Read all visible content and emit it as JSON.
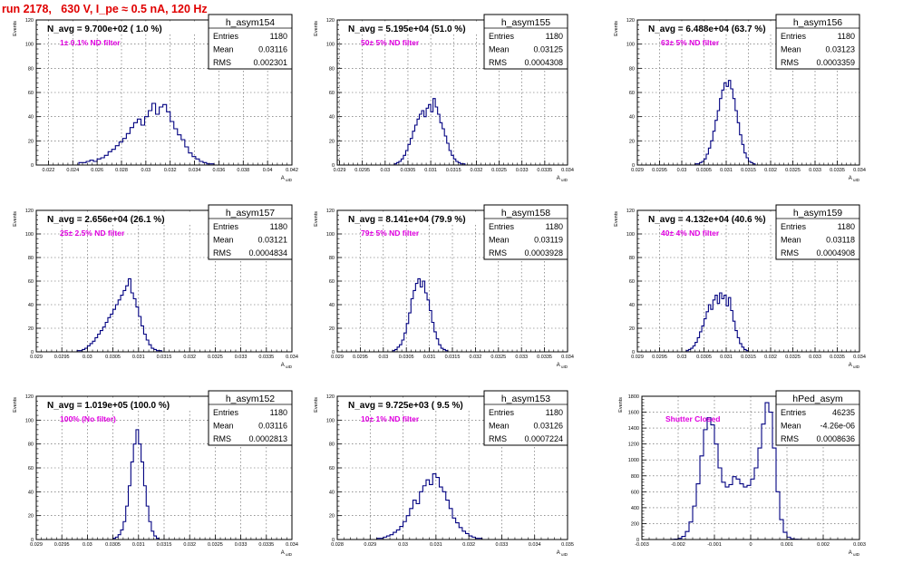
{
  "header": {
    "title": "run 2178,   630 V, I_pe ≈ 0.5 nA, 120 Hz"
  },
  "colors": {
    "title": "#e00000",
    "note": "#e000e0",
    "hist": "#000080",
    "grid": "#000000",
    "frame": "#000000"
  },
  "stats_labels": {
    "entries": "Entries",
    "mean": "Mean",
    "rms": "RMS"
  },
  "chart_data": [
    {
      "type": "bar",
      "name": "h_asym154",
      "label": "N_avg = 9.700e+02 ( 1.0 %)",
      "note": "1± 0.1% ND filter",
      "stats": {
        "entries": "1180",
        "mean": "0.03116",
        "rms": "0.002301"
      },
      "ylabel": "Events",
      "xlabel": "A_uID",
      "xlim": [
        0.021,
        0.042
      ],
      "ylim": [
        0,
        120
      ],
      "xticks": [
        0.022,
        0.024,
        0.026,
        0.028,
        0.03,
        0.032,
        0.034,
        0.036,
        0.038,
        0.04,
        0.042
      ],
      "xticklabels": [
        "0.022",
        "0.024",
        "0.026",
        "0.028",
        "0.03",
        "0.032",
        "0.034",
        "0.036",
        "0.038",
        "0.04",
        "0.042"
      ],
      "yticks": [
        0,
        20,
        40,
        60,
        80,
        100,
        120
      ],
      "yticklabels": [
        "0",
        "20",
        "40",
        "60",
        "80",
        "100",
        "120"
      ],
      "bins": {
        "start": 0.0245,
        "width": 0.0003,
        "values": [
          2,
          2,
          3,
          4,
          3,
          5,
          6,
          8,
          11,
          13,
          16,
          19,
          22,
          26,
          31,
          35,
          38,
          33,
          40,
          45,
          51,
          42,
          48,
          50,
          44,
          36,
          30,
          25,
          21,
          15,
          10,
          7,
          5,
          3,
          2,
          1,
          1
        ]
      }
    },
    {
      "type": "bar",
      "name": "h_asym155",
      "label": "N_avg = 5.195e+04 (51.0 %)",
      "note": "50± 5% ND filter",
      "stats": {
        "entries": "1180",
        "mean": "0.03125",
        "rms": "0.0004308"
      },
      "ylabel": "Events",
      "xlabel": "A_uID",
      "xlim": [
        0.02895,
        0.034
      ],
      "ylim": [
        0,
        120
      ],
      "xticks": [
        0.029,
        0.0295,
        0.03,
        0.0305,
        0.031,
        0.0315,
        0.032,
        0.0325,
        0.033,
        0.0335,
        0.034
      ],
      "xticklabels": [
        "0.029",
        "0.0295",
        "0.03",
        "0.0305",
        "0.031",
        "0.0315",
        "0.032",
        "0.0325",
        "0.033",
        "0.0335",
        "0.034"
      ],
      "yticks": [
        0,
        20,
        40,
        60,
        80,
        100,
        120
      ],
      "yticklabels": [
        "0",
        "20",
        "40",
        "60",
        "80",
        "100",
        "120"
      ],
      "bins": {
        "start": 0.0302,
        "width": 5e-05,
        "values": [
          1,
          2,
          3,
          5,
          8,
          12,
          17,
          22,
          28,
          33,
          38,
          42,
          45,
          40,
          47,
          50,
          44,
          55,
          48,
          42,
          35,
          30,
          24,
          18,
          12,
          8,
          5,
          3,
          2,
          1,
          1
        ]
      }
    },
    {
      "type": "bar",
      "name": "h_asym156",
      "label": "N_avg = 6.488e+04 (63.7 %)",
      "note": "63± 5% ND filter",
      "stats": {
        "entries": "1180",
        "mean": "0.03123",
        "rms": "0.0003359"
      },
      "ylabel": "Events",
      "xlabel": "A_uID",
      "xlim": [
        0.029,
        0.034
      ],
      "ylim": [
        0,
        120
      ],
      "xticks": [
        0.029,
        0.0295,
        0.03,
        0.0305,
        0.031,
        0.0315,
        0.032,
        0.0325,
        0.033,
        0.0335,
        0.034
      ],
      "xticklabels": [
        "0.029",
        "0.0295",
        "0.03",
        "0.0305",
        "0.031",
        "0.0315",
        "0.032",
        "0.0325",
        "0.033",
        "0.0335",
        "0.034"
      ],
      "yticks": [
        0,
        20,
        40,
        60,
        80,
        100,
        120
      ],
      "yticklabels": [
        "0",
        "20",
        "40",
        "60",
        "80",
        "100",
        "120"
      ],
      "bins": {
        "start": 0.0303,
        "width": 5e-05,
        "values": [
          1,
          1,
          2,
          3,
          5,
          9,
          14,
          20,
          28,
          37,
          45,
          55,
          62,
          68,
          65,
          70,
          63,
          55,
          45,
          35,
          25,
          17,
          10,
          6,
          3,
          2,
          1
        ]
      }
    },
    {
      "type": "bar",
      "name": "h_asym157",
      "label": "N_avg = 2.656e+04 (26.1 %)",
      "note": "25± 2.5% ND filter",
      "stats": {
        "entries": "1180",
        "mean": "0.03121",
        "rms": "0.0004834"
      },
      "ylabel": "Events",
      "xlabel": "A_uID",
      "xlim": [
        0.029,
        0.034
      ],
      "ylim": [
        0,
        120
      ],
      "xticks": [
        0.029,
        0.0295,
        0.03,
        0.0305,
        0.031,
        0.0315,
        0.032,
        0.0325,
        0.033,
        0.0335,
        0.034
      ],
      "xticklabels": [
        "0.029",
        "0.0295",
        "0.03",
        "0.0305",
        "0.031",
        "0.0315",
        "0.032",
        "0.0325",
        "0.033",
        "0.0335",
        "0.034"
      ],
      "yticks": [
        0,
        20,
        40,
        60,
        80,
        100,
        120
      ],
      "yticklabels": [
        "0",
        "20",
        "40",
        "60",
        "80",
        "100",
        "120"
      ],
      "bins": {
        "start": 0.0298,
        "width": 5e-05,
        "values": [
          1,
          1,
          2,
          3,
          5,
          7,
          9,
          12,
          15,
          18,
          21,
          25,
          29,
          32,
          36,
          40,
          44,
          48,
          52,
          56,
          62,
          50,
          45,
          38,
          30,
          22,
          15,
          10,
          6,
          3,
          2,
          1,
          1
        ]
      }
    },
    {
      "type": "bar",
      "name": "h_asym158",
      "label": "N_avg = 8.141e+04 (79.9 %)",
      "note": "79± 5% ND filter",
      "stats": {
        "entries": "1180",
        "mean": "0.03119",
        "rms": "0.0003928"
      },
      "ylabel": "Events",
      "xlabel": "A_uID",
      "xlim": [
        0.029,
        0.034
      ],
      "ylim": [
        0,
        120
      ],
      "xticks": [
        0.029,
        0.0295,
        0.03,
        0.0305,
        0.031,
        0.0315,
        0.032,
        0.0325,
        0.033,
        0.0335,
        0.034
      ],
      "xticklabels": [
        "0.029",
        "0.0295",
        "0.03",
        "0.0305",
        "0.031",
        "0.0315",
        "0.032",
        "0.0325",
        "0.033",
        "0.0335",
        "0.034"
      ],
      "yticks": [
        0,
        20,
        40,
        60,
        80,
        100,
        120
      ],
      "yticklabels": [
        "0",
        "20",
        "40",
        "60",
        "80",
        "100",
        "120"
      ],
      "bins": {
        "start": 0.0302,
        "width": 5e-05,
        "values": [
          1,
          2,
          4,
          6,
          10,
          16,
          24,
          33,
          45,
          52,
          58,
          62,
          55,
          60,
          50,
          44,
          35,
          25,
          17,
          11,
          6,
          3,
          2,
          1
        ]
      }
    },
    {
      "type": "bar",
      "name": "h_asym159",
      "label": "N_avg = 4.132e+04 (40.6 %)",
      "note": "40± 4% ND filter",
      "stats": {
        "entries": "1180",
        "mean": "0.03118",
        "rms": "0.0004908"
      },
      "ylabel": "Events",
      "xlabel": "A_uID",
      "xlim": [
        0.029,
        0.034
      ],
      "ylim": [
        0,
        120
      ],
      "xticks": [
        0.029,
        0.0295,
        0.03,
        0.0305,
        0.031,
        0.0315,
        0.032,
        0.0325,
        0.033,
        0.0335,
        0.034
      ],
      "xticklabels": [
        "0.029",
        "0.0295",
        "0.03",
        "0.0305",
        "0.031",
        "0.0315",
        "0.032",
        "0.0325",
        "0.033",
        "0.0335",
        "0.034"
      ],
      "yticks": [
        0,
        20,
        40,
        60,
        80,
        100,
        120
      ],
      "yticklabels": [
        "0",
        "20",
        "40",
        "60",
        "80",
        "100",
        "120"
      ],
      "bins": {
        "start": 0.0301,
        "width": 5e-05,
        "values": [
          1,
          2,
          3,
          5,
          8,
          12,
          17,
          22,
          28,
          34,
          40,
          36,
          44,
          48,
          41,
          50,
          45,
          48,
          39,
          46,
          35,
          26,
          18,
          12,
          7,
          4,
          2,
          1
        ]
      }
    },
    {
      "type": "bar",
      "name": "h_asym152",
      "label": "N_avg = 1.019e+05 (100.0 %)",
      "note": "100% (No filter)",
      "stats": {
        "entries": "1180",
        "mean": "0.03116",
        "rms": "0.0002813"
      },
      "ylabel": "Events",
      "xlabel": "A_uID",
      "xlim": [
        0.029,
        0.034
      ],
      "ylim": [
        0,
        120
      ],
      "xticks": [
        0.029,
        0.0295,
        0.03,
        0.0305,
        0.031,
        0.0315,
        0.032,
        0.0325,
        0.033,
        0.0335,
        0.034
      ],
      "xticklabels": [
        "0.029",
        "0.0295",
        "0.03",
        "0.0305",
        "0.031",
        "0.0315",
        "0.032",
        "0.0325",
        "0.033",
        "0.0335",
        "0.034"
      ],
      "yticks": [
        0,
        20,
        40,
        60,
        80,
        100,
        120
      ],
      "yticklabels": [
        "0",
        "20",
        "40",
        "60",
        "80",
        "100",
        "120"
      ],
      "bins": {
        "start": 0.0305,
        "width": 5e-05,
        "values": [
          1,
          2,
          4,
          8,
          15,
          28,
          45,
          65,
          80,
          92,
          80,
          65,
          45,
          28,
          15,
          7,
          3,
          1
        ]
      }
    },
    {
      "type": "bar",
      "name": "h_asym153",
      "label": "N_avg = 9.725e+03 ( 9.5 %)",
      "note": "10± 1% ND filter",
      "stats": {
        "entries": "1180",
        "mean": "0.03126",
        "rms": "0.0007224"
      },
      "ylabel": "Events",
      "xlabel": "A_uID",
      "xlim": [
        0.028,
        0.035
      ],
      "ylim": [
        0,
        120
      ],
      "xticks": [
        0.028,
        0.029,
        0.03,
        0.031,
        0.032,
        0.033,
        0.034,
        0.035
      ],
      "xticklabels": [
        "0.028",
        "0.029",
        "0.03",
        "0.031",
        "0.032",
        "0.033",
        "0.034",
        "0.035"
      ],
      "yticks": [
        0,
        20,
        40,
        60,
        80,
        100,
        120
      ],
      "yticklabels": [
        "0",
        "20",
        "40",
        "60",
        "80",
        "100",
        "120"
      ],
      "bins": {
        "start": 0.0292,
        "width": 0.0001,
        "values": [
          1,
          1,
          2,
          3,
          4,
          6,
          8,
          11,
          15,
          20,
          26,
          33,
          30,
          40,
          45,
          50,
          46,
          55,
          52,
          44,
          40,
          33,
          26,
          18,
          14,
          10,
          7,
          5,
          3,
          2,
          1,
          1
        ]
      }
    },
    {
      "type": "bar",
      "name": "hPed_asym",
      "label": "",
      "note": "Shutter Closed",
      "stats": {
        "entries": "46235",
        "mean": "-4.26e-06",
        "rms": "0.0008636"
      },
      "ylabel": "Events",
      "xlabel": "A_uID",
      "xlim": [
        -0.003,
        0.003
      ],
      "ylim": [
        0,
        1800
      ],
      "xticks": [
        -0.003,
        -0.002,
        -0.001,
        0,
        0.001,
        0.002,
        0.003
      ],
      "xticklabels": [
        "-0.003",
        "-0.002",
        "-0.001",
        "0",
        "0.001",
        "0.002",
        "0.003"
      ],
      "yticks": [
        0,
        200,
        400,
        600,
        800,
        1000,
        1200,
        1400,
        1600,
        1800
      ],
      "yticklabels": [
        "0",
        "200",
        "400",
        "600",
        "800",
        "1000",
        "1200",
        "1400",
        "1600",
        "1800"
      ],
      "bins": {
        "start": -0.0022,
        "width": 0.0001,
        "values": [
          2,
          5,
          15,
          40,
          100,
          220,
          420,
          700,
          1050,
          1380,
          1530,
          1440,
          1200,
          900,
          720,
          660,
          690,
          790,
          760,
          700,
          660,
          680,
          760,
          900,
          1150,
          1450,
          1720,
          1600,
          1150,
          600,
          250,
          90,
          30,
          10,
          4,
          2
        ]
      }
    }
  ]
}
